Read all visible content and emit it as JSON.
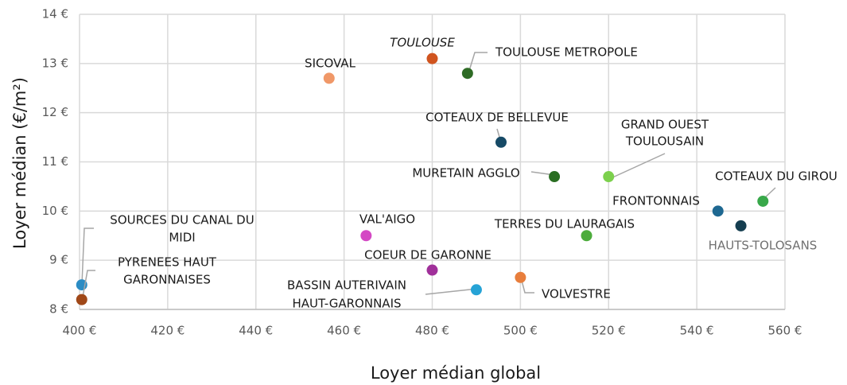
{
  "chart_data": {
    "type": "scatter",
    "x_label": "Loyer médian global",
    "y_label": "Loyer médian (€/m²)",
    "xlim": [
      400,
      560
    ],
    "ylim": [
      8,
      14
    ],
    "xticks": [
      {
        "value": 400,
        "label": "400 €"
      },
      {
        "value": 420,
        "label": "420 €"
      },
      {
        "value": 440,
        "label": "440 €"
      },
      {
        "value": 460,
        "label": "460 €"
      },
      {
        "value": 480,
        "label": "480 €"
      },
      {
        "value": 500,
        "label": "500 €"
      },
      {
        "value": 520,
        "label": "520 €"
      },
      {
        "value": 540,
        "label": "540 €"
      },
      {
        "value": 560,
        "label": "560 €"
      }
    ],
    "yticks": [
      {
        "value": 8,
        "label": "8 €"
      },
      {
        "value": 9,
        "label": "9 €"
      },
      {
        "value": 10,
        "label": "10 €"
      },
      {
        "value": 11,
        "label": "11 €"
      },
      {
        "value": 12,
        "label": "12 €"
      },
      {
        "value": 13,
        "label": "13 €"
      },
      {
        "value": 14,
        "label": "14 €"
      }
    ],
    "grid": true,
    "points": [
      {
        "label": [
          "TOULOUSE"
        ],
        "x": 480,
        "y": 13.1,
        "color": "#d0541f"
      },
      {
        "label": [
          "TOULOUSE METROPOLE"
        ],
        "x": 488,
        "y": 12.8,
        "color": "#2e6b25"
      },
      {
        "label": [
          "SICOVAL"
        ],
        "x": 456.6,
        "y": 12.7,
        "color": "#f09868"
      },
      {
        "label": [
          "COTEAUX DE BELLEVUE"
        ],
        "x": 495.6,
        "y": 11.4,
        "color": "#164a66"
      },
      {
        "label": [
          "MURETAIN AGGLO"
        ],
        "x": 507.7,
        "y": 10.7,
        "color": "#2a6e22"
      },
      {
        "label": [
          "GRAND OUEST",
          "TOULOUSAIN"
        ],
        "x": 520,
        "y": 10.7,
        "color": "#7cd04d"
      },
      {
        "label": [
          "COTEAUX DU GIROU"
        ],
        "x": 555,
        "y": 10.2,
        "color": "#38a84a"
      },
      {
        "label": [
          "FRONTONNAIS"
        ],
        "x": 544.8,
        "y": 10.0,
        "color": "#1e6891"
      },
      {
        "label": [
          "HAUTS-TOLOSANS"
        ],
        "x": 550,
        "y": 9.7,
        "color": "#153e50"
      },
      {
        "label": [
          "TERRES DU LAURAGAIS"
        ],
        "x": 515,
        "y": 9.5,
        "color": "#4cac3c"
      },
      {
        "label": [
          "VAL'AIGO"
        ],
        "x": 465,
        "y": 9.5,
        "color": "#d449c4"
      },
      {
        "label": [
          "COEUR DE GARONNE"
        ],
        "x": 480,
        "y": 8.8,
        "color": "#a0309a"
      },
      {
        "label": [
          "BASSIN AUTERIVAIN",
          "HAUT-GARONNAIS"
        ],
        "x": 490,
        "y": 8.4,
        "color": "#26a3d6"
      },
      {
        "label": [
          "VOLVESTRE"
        ],
        "x": 500,
        "y": 8.65,
        "color": "#e87e3c"
      },
      {
        "label": [
          "SOURCES DU CANAL DU",
          "MIDI"
        ],
        "x": 400.5,
        "y": 8.5,
        "color": "#2c8cc4"
      },
      {
        "label": [
          "PYRENEES HAUT",
          "GARONNAISES"
        ],
        "x": 400.5,
        "y": 8.2,
        "color": "#a04818"
      }
    ]
  }
}
